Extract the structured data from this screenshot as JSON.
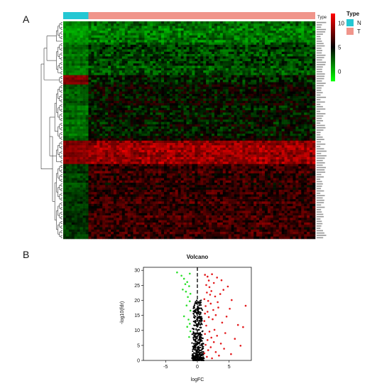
{
  "panel_labels": {
    "a": "A",
    "b": "B"
  },
  "colors": {
    "normal": "#24C7D3",
    "tumor": "#F0958B",
    "heat_low": "#00FF00",
    "heat_mid": "#000000",
    "heat_high": "#FF0000",
    "up": "#E31A1C",
    "down": "#2EE02E",
    "ns": "#000000"
  },
  "chart_data": [
    {
      "type": "heatmap",
      "annotation_label": "Type",
      "legend_title": "Type",
      "groups": [
        {
          "key": "N",
          "label": "N",
          "fraction": 0.1
        },
        {
          "key": "T",
          "label": "T",
          "fraction": 0.9
        }
      ],
      "color_scale": {
        "min": -2,
        "max": 12,
        "ticks": [
          10,
          5,
          0
        ]
      },
      "row_blocks": [
        {
          "rows": 9,
          "n_level": 1.0,
          "t_level": 2.0
        },
        {
          "rows": 14,
          "n_level": 2.0,
          "t_level": 3.2
        },
        {
          "rows": 4,
          "n_level": 8.5,
          "t_level": 4.2
        },
        {
          "rows": 24,
          "n_level": 2.2,
          "t_level": 4.6
        },
        {
          "rows": 10,
          "n_level": 8.8,
          "t_level": 9.4
        },
        {
          "rows": 32,
          "n_level": 3.4,
          "t_level": 6.4
        }
      ]
    },
    {
      "type": "scatter",
      "title": "Volcano",
      "xlabel": "logFC",
      "ylabel": "-log10(fdr)",
      "xlim": [
        -8.5,
        8.5
      ],
      "ylim": [
        0,
        31
      ],
      "xticks": [
        -5,
        0,
        5
      ],
      "yticks": [
        0,
        5,
        10,
        15,
        20,
        25,
        30
      ],
      "vline": 0,
      "series": [
        {
          "group": "up",
          "points": [
            [
              1.2,
              28.5
            ],
            [
              1.6,
              27.9
            ],
            [
              2.3,
              28.7
            ],
            [
              3.1,
              27.6
            ],
            [
              2.6,
              25.8
            ],
            [
              1.4,
              25.1
            ],
            [
              1.9,
              24.4
            ],
            [
              2.2,
              23.1
            ],
            [
              1.5,
              22.6
            ],
            [
              3.6,
              22.1
            ],
            [
              2.8,
              21.3
            ],
            [
              1.1,
              20.4
            ],
            [
              1.7,
              19.8
            ],
            [
              4.8,
              24.6
            ],
            [
              2.1,
              18.9
            ],
            [
              1.3,
              18.1
            ],
            [
              3.3,
              17.6
            ],
            [
              2.5,
              16.8
            ],
            [
              1.6,
              16.2
            ],
            [
              1.2,
              15.6
            ],
            [
              5.4,
              20.1
            ],
            [
              7.6,
              18.2
            ],
            [
              2.9,
              15.1
            ],
            [
              1.8,
              14.4
            ],
            [
              2.4,
              13.7
            ],
            [
              1.1,
              13.1
            ],
            [
              3.9,
              12.6
            ],
            [
              6.4,
              11.8
            ],
            [
              7.2,
              11.1
            ],
            [
              1.4,
              11.6
            ],
            [
              2.7,
              10.2
            ],
            [
              1.9,
              9.6
            ],
            [
              4.4,
              9.1
            ],
            [
              1.2,
              8.8
            ],
            [
              3.1,
              8.2
            ],
            [
              2.2,
              7.6
            ],
            [
              5.9,
              7.2
            ],
            [
              1.6,
              6.8
            ],
            [
              2.6,
              6.1
            ],
            [
              3.7,
              5.6
            ],
            [
              1.3,
              5.2
            ],
            [
              6.8,
              4.9
            ],
            [
              2.1,
              4.4
            ],
            [
              4.2,
              3.9
            ],
            [
              1.7,
              3.4
            ],
            [
              2.9,
              2.8
            ],
            [
              1.1,
              2.4
            ],
            [
              5.3,
              2.1
            ],
            [
              3.4,
              1.6
            ],
            [
              1.5,
              1.2
            ],
            [
              2.3,
              0.7
            ],
            [
              4.6,
              14.6
            ],
            [
              3.8,
              26.7
            ],
            [
              5.1,
              17.2
            ],
            [
              2.0,
              21.9
            ],
            [
              3.2,
              19.4
            ],
            [
              1.8,
              26.6
            ],
            [
              4.1,
              23.5
            ]
          ]
        },
        {
          "group": "down",
          "points": [
            [
              -3.2,
              29.3
            ],
            [
              -2.5,
              28.2
            ],
            [
              -2.1,
              27.2
            ],
            [
              -1.6,
              26.1
            ],
            [
              -1.9,
              25.4
            ],
            [
              -1.3,
              24.7
            ],
            [
              -2.3,
              23.6
            ],
            [
              -1.1,
              22.2
            ],
            [
              -1.5,
              21.1
            ],
            [
              -1.2,
              19.7
            ],
            [
              -1.7,
              18.3
            ],
            [
              -1.1,
              16.6
            ],
            [
              -2.1,
              14.7
            ],
            [
              -1.4,
              13.6
            ],
            [
              -1.2,
              12.2
            ],
            [
              -1.6,
              11.2
            ],
            [
              -1.1,
              9.7
            ],
            [
              -1.3,
              7.8
            ],
            [
              -1.2,
              28.9
            ],
            [
              -1.8,
              22.9
            ]
          ]
        }
      ]
    }
  ]
}
